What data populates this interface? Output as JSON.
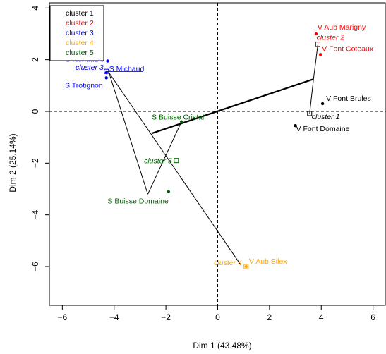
{
  "chart_data": {
    "type": "scatter",
    "title": "",
    "xlabel": "Dim 1 (43.48%)",
    "ylabel": "Dim 2 (25.14%)",
    "xlim": [
      -6.5,
      6.5
    ],
    "ylim": [
      -7.5,
      4.2
    ],
    "xticks": [
      -6,
      -4,
      -2,
      0,
      2,
      4,
      6
    ],
    "yticks": [
      -6,
      -4,
      -2,
      0,
      2,
      4
    ],
    "grid": false,
    "reference_lines": {
      "x": 0,
      "y": 0,
      "style": "dashed"
    },
    "legend": {
      "position": "top-left",
      "entries": [
        "cluster 1",
        "cluster 2",
        "cluster 3",
        "cluster 4",
        "cluster 5"
      ],
      "colors": [
        "#000000",
        "#ff0000",
        "#0000ff",
        "#ffa500",
        "#006400"
      ]
    },
    "clusters": [
      {
        "name": "cluster 1",
        "color": "#000000",
        "center": {
          "x": 3.55,
          "y": -0.08
        },
        "points": [
          {
            "name": "V Font Brules",
            "x": 4.05,
            "y": 0.3
          },
          {
            "name": "V Font Domaine",
            "x": 3.0,
            "y": -0.55
          }
        ]
      },
      {
        "name": "cluster 2",
        "color": "#ff0000",
        "center": {
          "x": 3.87,
          "y": 2.6
        },
        "points": [
          {
            "name": "V Aub Marigny",
            "x": 3.8,
            "y": 3.0
          },
          {
            "name": "V Font Coteaux",
            "x": 3.97,
            "y": 2.2
          }
        ]
      },
      {
        "name": "cluster 3",
        "color": "#0000ff",
        "center": {
          "x": -4.3,
          "y": 1.55
        },
        "points": [
          {
            "name": "S Renaudie",
            "x": -4.25,
            "y": 1.95
          },
          {
            "name": "S Michaud",
            "x": -4.3,
            "y": 1.5
          },
          {
            "name": "S Trotignon",
            "x": -4.3,
            "y": 1.3
          }
        ]
      },
      {
        "name": "cluster 4",
        "color": "#ffa500",
        "center": {
          "x": 1.1,
          "y": -6.0
        },
        "points": [
          {
            "name": "V Aub Silex",
            "x": 1.1,
            "y": -6.0
          }
        ]
      },
      {
        "name": "cluster 5",
        "color": "#006400",
        "center": {
          "x": -1.6,
          "y": -1.9
        },
        "points": [
          {
            "name": "S Buisse Cristal",
            "x": -1.4,
            "y": -0.4
          },
          {
            "name": "S Buisse Domaine",
            "x": -1.9,
            "y": -3.1
          }
        ]
      }
    ],
    "dendrogram_links": [
      {
        "from": [
          -4.3,
          1.55
        ],
        "to": [
          -2.9,
          1.55
        ],
        "width": 1.2
      },
      {
        "from": [
          -4.2,
          1.5
        ],
        "to": [
          0.9,
          -5.95
        ],
        "width": 1
      },
      {
        "from": [
          -4.2,
          1.5
        ],
        "to": [
          -2.7,
          -3.2
        ],
        "width": 1
      },
      {
        "from": [
          -2.7,
          -3.2
        ],
        "to": [
          -1.4,
          -0.4
        ],
        "width": 1
      },
      {
        "from": [
          -2.55,
          -0.85
        ],
        "to": [
          3.7,
          1.25
        ],
        "width": 2.2
      },
      {
        "from": [
          3.7,
          1.25
        ],
        "to": [
          3.87,
          2.6
        ],
        "width": 1
      },
      {
        "from": [
          3.55,
          -0.08
        ],
        "to": [
          3.7,
          1.25
        ],
        "width": 1
      }
    ]
  }
}
